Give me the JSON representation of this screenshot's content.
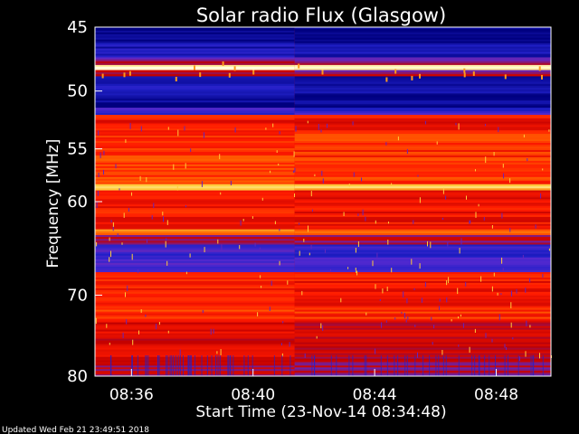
{
  "chart_data": {
    "type": "heatmap",
    "title": "Solar radio Flux (Glasgow)",
    "xlabel": "Start Time (23-Nov-14 08:34:48)",
    "ylabel": "Frequency [MHz]",
    "footer": "Updated Wed Feb 21 23:49:51 2018",
    "x_range": [
      "08:34:48",
      "08:49:48"
    ],
    "x_ticks": [
      "08:36",
      "08:40",
      "08:44",
      "08:48"
    ],
    "y_range": [
      45,
      80
    ],
    "y_ticks": [
      45,
      50,
      55,
      60,
      70,
      80
    ],
    "y_scale": "log",
    "colormap": [
      "#00007f",
      "#2020c8",
      "#5a2ad0",
      "#c00000",
      "#ff1a00",
      "#ff6a00",
      "#ffd040",
      "#ffffe0"
    ],
    "bands": [
      {
        "f0": 45.0,
        "f1": 46.2,
        "level": 0.02
      },
      {
        "f0": 46.2,
        "f1": 47.3,
        "level": 0.1
      },
      {
        "f0": 47.3,
        "f1": 47.9,
        "level": 0.35
      },
      {
        "f0": 47.9,
        "f1": 48.3,
        "level": 1.0
      },
      {
        "f0": 48.3,
        "f1": 48.8,
        "level": 0.4
      },
      {
        "f0": 48.8,
        "f1": 50.2,
        "level": 0.1
      },
      {
        "f0": 50.2,
        "f1": 51.4,
        "level": 0.05
      },
      {
        "f0": 51.4,
        "f1": 52.0,
        "level": 0.2
      },
      {
        "f0": 52.0,
        "f1": 53.5,
        "level": 0.55
      },
      {
        "f0": 53.5,
        "f1": 58.3,
        "level": 0.62
      },
      {
        "f0": 58.3,
        "f1": 58.9,
        "level": 0.85
      },
      {
        "f0": 58.9,
        "f1": 62.8,
        "level": 0.55
      },
      {
        "f0": 62.8,
        "f1": 63.4,
        "level": 0.7
      },
      {
        "f0": 63.4,
        "f1": 64.4,
        "level": 0.4
      },
      {
        "f0": 64.4,
        "f1": 67.4,
        "level": 0.22
      },
      {
        "f0": 67.4,
        "f1": 71.5,
        "level": 0.55
      },
      {
        "f0": 71.5,
        "f1": 73.0,
        "level": 0.62
      },
      {
        "f0": 73.0,
        "f1": 77.5,
        "level": 0.48
      },
      {
        "f0": 77.5,
        "f1": 80.0,
        "level": 0.4
      }
    ],
    "change_time": "08:41:22"
  }
}
